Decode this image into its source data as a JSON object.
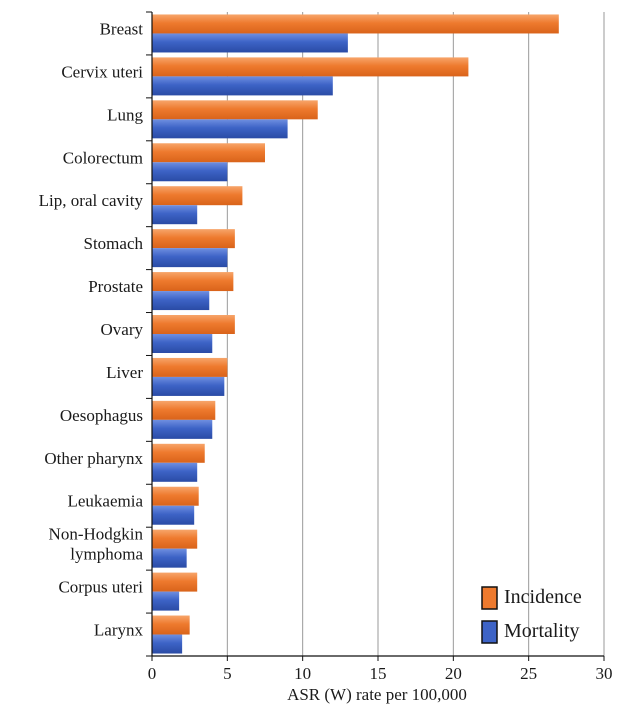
{
  "chart_data": {
    "type": "bar",
    "orientation": "horizontal",
    "title": "",
    "xlabel": "ASR (W) rate per 100,000",
    "ylabel": "",
    "xlim": [
      0,
      30
    ],
    "xticks": [
      0,
      5,
      10,
      15,
      20,
      25,
      30
    ],
    "grid": true,
    "legend_position": "bottom-right",
    "categories": [
      "Breast",
      "Cervix uteri",
      "Lung",
      "Colorectum",
      "Lip, oral cavity",
      "Stomach",
      "Prostate",
      "Ovary",
      "Liver",
      "Oesophagus",
      "Other pharynx",
      "Leukaemia",
      "Non-Hodgkin lymphoma",
      "Corpus uteri",
      "Larynx"
    ],
    "category_lines": [
      [
        "Breast"
      ],
      [
        "Cervix uteri"
      ],
      [
        "Lung"
      ],
      [
        "Colorectum"
      ],
      [
        "Lip, oral cavity"
      ],
      [
        "Stomach"
      ],
      [
        "Prostate"
      ],
      [
        "Ovary"
      ],
      [
        "Liver"
      ],
      [
        "Oesophagus"
      ],
      [
        "Other pharynx"
      ],
      [
        "Leukaemia"
      ],
      [
        "Non-Hodgkin",
        "lymphoma"
      ],
      [
        "Corpus uteri"
      ],
      [
        "Larynx"
      ]
    ],
    "series": [
      {
        "name": "Incidence",
        "color": "#ee7a2e",
        "values": [
          27.0,
          21.0,
          11.0,
          7.5,
          6.0,
          5.5,
          5.4,
          5.5,
          5.0,
          4.2,
          3.5,
          3.1,
          3.0,
          3.0,
          2.5
        ]
      },
      {
        "name": "Mortality",
        "color": "#3d63c6",
        "values": [
          13.0,
          12.0,
          9.0,
          5.0,
          3.0,
          5.0,
          3.8,
          4.0,
          4.8,
          4.0,
          3.0,
          2.8,
          2.3,
          1.8,
          2.0
        ]
      }
    ]
  }
}
